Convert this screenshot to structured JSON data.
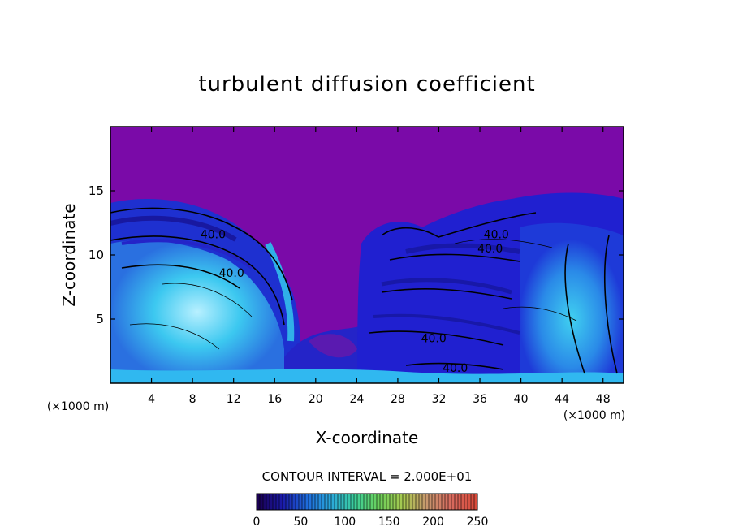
{
  "chart_data": {
    "type": "heatmap",
    "title": "turbulent diffusion coefficient",
    "xlabel": "X-coordinate",
    "ylabel": "Z-coordinate",
    "x_unit_left": "(×1000 m)",
    "x_unit_right": "(×1000 m)",
    "xlim": [
      0,
      50
    ],
    "ylim": [
      0,
      20
    ],
    "xticks": [
      4,
      8,
      12,
      16,
      20,
      24,
      28,
      32,
      36,
      40,
      44,
      48
    ],
    "yticks": [
      5,
      10,
      15
    ],
    "contour_interval_text": "CONTOUR INTERVAL = 2.000E+01",
    "contour_labels": [
      {
        "text": "40.0",
        "x": 10.0,
        "z": 11.6
      },
      {
        "text": "40.0",
        "x": 11.8,
        "z": 8.6
      },
      {
        "text": "40.0",
        "x": 37.6,
        "z": 11.6
      },
      {
        "text": "40.0",
        "x": 37.0,
        "z": 10.5
      },
      {
        "text": "40.0",
        "x": 31.5,
        "z": 3.5
      },
      {
        "text": "40.0",
        "x": 33.6,
        "z": 1.2
      }
    ],
    "colorbar": {
      "min": 0,
      "max": 250,
      "ticks": [
        0,
        50,
        100,
        150,
        200,
        250
      ],
      "colors": [
        "#1a0052",
        "#1a1aa8",
        "#1e6adc",
        "#2aa8dc",
        "#3ccf9a",
        "#6cd05a",
        "#a8c850",
        "#c8966e",
        "#d86a5e",
        "#d84a3a"
      ]
    },
    "colors": {
      "background_field": "#7a0aa8",
      "low": "#2020d8",
      "mid": "#20a0e8",
      "high": "#40e0f0",
      "peak": "#30e890"
    }
  }
}
